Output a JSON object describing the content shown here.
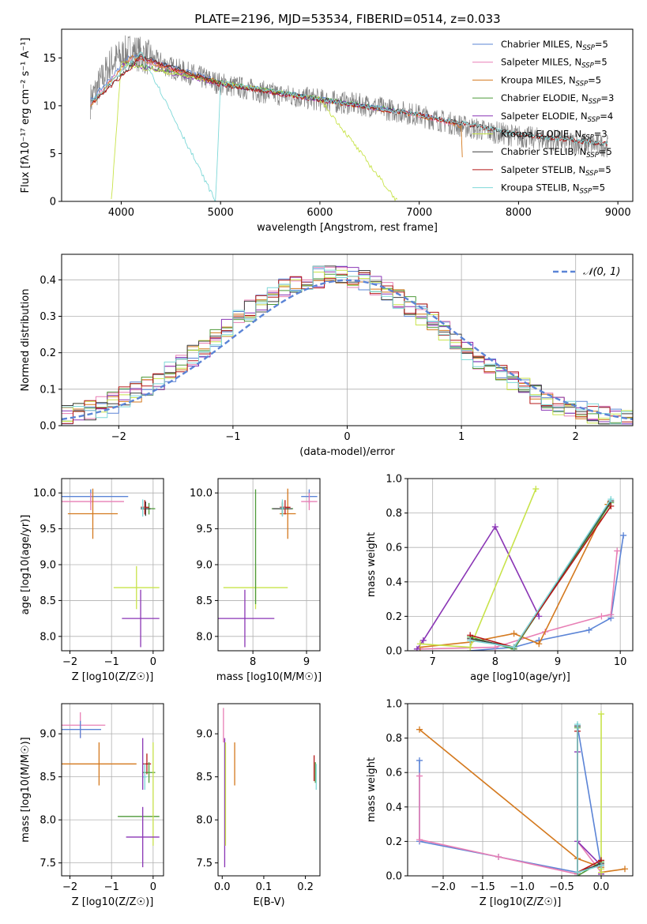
{
  "figure": {
    "title": "PLATE=2196, MJD=53534, FIBERID=0514, z=0.033"
  },
  "chart_data": [
    {
      "id": "spectrum",
      "type": "line",
      "xlabel": "wavelength [Angstrom, rest frame]",
      "ylabel": "Flux [fλ10⁻¹⁷ erg cm⁻² s⁻¹ A⁻¹]",
      "xlim": [
        3400,
        9150
      ],
      "ylim": [
        0,
        18
      ],
      "xticks": [
        4000,
        5000,
        6000,
        7000,
        8000,
        9000
      ],
      "yticks": [
        0,
        5,
        10,
        15
      ],
      "grid": false,
      "legend_position": "top-right",
      "data_series": {
        "name": "data",
        "color": "#808080",
        "x": [
          3690,
          3900,
          4100,
          4500,
          5000,
          5500,
          6000,
          6500,
          7000,
          7500,
          8000,
          8500,
          8900
        ],
        "y": [
          10.5,
          14.5,
          15.8,
          14.0,
          12.3,
          11.3,
          10.6,
          10.0,
          9.0,
          7.7,
          6.8,
          6.2,
          5.8
        ]
      },
      "series": [
        {
          "name": "Chabrier MILES, N_SSP=5",
          "color": "#5b84d6",
          "x": [
            3690,
            4100,
            5000,
            6000,
            7000,
            7400
          ],
          "y": [
            10.5,
            15.3,
            12.5,
            10.7,
            9.1,
            8.0
          ]
        },
        {
          "name": "Salpeter MILES, N_SSP=5",
          "color": "#e87fb5",
          "x": [
            3690,
            4100,
            5000,
            6000,
            7000,
            7400
          ],
          "y": [
            10.2,
            15.0,
            12.3,
            10.6,
            9.0,
            7.9
          ]
        },
        {
          "name": "Kroupa MILES, N_SSP=5",
          "color": "#d4791e",
          "x": [
            3690,
            4100,
            5000,
            6000,
            7000,
            7430,
            7440
          ],
          "y": [
            10.0,
            15.1,
            12.4,
            10.6,
            9.0,
            7.9,
            0
          ]
        },
        {
          "name": "Chabrier ELODIE, N_SSP=3",
          "color": "#4e9a3a",
          "x": [
            4000,
            5000,
            6000,
            6750
          ],
          "y": [
            14.6,
            12.4,
            10.7,
            9.6
          ]
        },
        {
          "name": "Salpeter ELODIE, N_SSP=4",
          "color": "#8a35b5",
          "x": [
            4000,
            5000,
            6000,
            6750
          ],
          "y": [
            14.5,
            12.3,
            10.6,
            9.5
          ]
        },
        {
          "name": "Kroupa ELODIE, N_SSP=3",
          "color": "#c8e34a",
          "x": [
            3900,
            4000,
            5000,
            6000,
            6780
          ],
          "y": [
            0,
            14.4,
            12.4,
            10.7,
            0
          ]
        },
        {
          "name": "Chabrier STELIB, N_SSP=5",
          "color": "#3f3f3f",
          "x": [
            3700,
            4200,
            5000,
            6000,
            7000,
            8000,
            8900
          ],
          "y": [
            10.3,
            15.2,
            12.3,
            10.7,
            9.1,
            7.0,
            6.0
          ]
        },
        {
          "name": "Salpeter STELIB, N_SSP=5",
          "color": "#b51818",
          "x": [
            3700,
            4200,
            5000,
            6000,
            7000,
            8000,
            8900
          ],
          "y": [
            10.2,
            15.0,
            12.2,
            10.6,
            9.0,
            7.0,
            6.0
          ]
        },
        {
          "name": "Kroupa STELIB, N_SSP=5",
          "color": "#7fd8d8",
          "x": [
            3700,
            4200,
            4950,
            5000,
            6000,
            7000,
            8000,
            8900
          ],
          "y": [
            10.4,
            15.6,
            0,
            12.4,
            10.7,
            9.1,
            7.0,
            6.0
          ]
        }
      ]
    },
    {
      "id": "residuals",
      "type": "histogram",
      "xlabel": "(data-model)/error",
      "ylabel": "Normed distribution",
      "xlim": [
        -2.5,
        2.5
      ],
      "ylim": [
        0,
        0.47
      ],
      "xticks": [
        -2,
        -1,
        0,
        1,
        2
      ],
      "yticks": [
        0.0,
        0.1,
        0.2,
        0.3,
        0.4
      ],
      "grid": true,
      "legend_position": "top-right",
      "gaussian": {
        "name": "𝒩(0, 1)",
        "color": "#5b84d6",
        "mu": 0,
        "sigma": 1
      },
      "bin_width": 0.1
    },
    {
      "id": "age_vs_Z",
      "type": "scatter",
      "xlabel": "Z [log10(Z/Z☉)]",
      "ylabel": "age  [log10(age/yr)]",
      "xlim": [
        -2.2,
        0.25
      ],
      "ylim": [
        7.8,
        10.2
      ],
      "xticks": [
        -2,
        -1,
        0
      ],
      "yticks": [
        8.0,
        8.5,
        9.0,
        9.5,
        10.0
      ],
      "grid": true,
      "points": [
        {
          "color": "#5b84d6",
          "x": -1.5,
          "y": 9.95,
          "xerr": 0.9,
          "yerr": 0.1
        },
        {
          "color": "#e87fb5",
          "x": -1.5,
          "y": 9.88,
          "xerr": 0.8,
          "yerr": 0.12
        },
        {
          "color": "#d4791e",
          "x": -1.45,
          "y": 9.71,
          "xerr": 0.6,
          "yerr": 0.35
        },
        {
          "color": "#4e9a3a",
          "x": -0.1,
          "y": 9.78,
          "xerr": 0.15,
          "yerr": 0.08
        },
        {
          "color": "#3f3f3f",
          "x": -0.18,
          "y": 9.78,
          "xerr": 0.12,
          "yerr": 0.1
        },
        {
          "color": "#b51818",
          "x": -0.2,
          "y": 9.8,
          "xerr": 0.1,
          "yerr": 0.1
        },
        {
          "color": "#7fd8d8",
          "x": -0.25,
          "y": 9.79,
          "xerr": 0.05,
          "yerr": 0.12
        },
        {
          "color": "#c8e34a",
          "x": -0.4,
          "y": 8.68,
          "xerr": 0.55,
          "yerr": 0.3
        },
        {
          "color": "#8a35b5",
          "x": -0.3,
          "y": 8.25,
          "xerr": 0.45,
          "yerr": 0.4
        }
      ]
    },
    {
      "id": "age_vs_mass",
      "type": "scatter",
      "xlabel": "mass [log10(M/M☉)]",
      "ylabel": "",
      "xlim": [
        7.35,
        9.25
      ],
      "ylim": [
        7.8,
        10.2
      ],
      "xticks": [
        8,
        9
      ],
      "yticks": [
        8.0,
        8.5,
        9.0,
        9.5,
        10.0
      ],
      "grid": true,
      "points": [
        {
          "color": "#5b84d6",
          "x": 9.05,
          "y": 9.95,
          "xerr": 0.15,
          "yerr": 0.1
        },
        {
          "color": "#e87fb5",
          "x": 9.05,
          "y": 9.88,
          "xerr": 0.15,
          "yerr": 0.12
        },
        {
          "color": "#d4791e",
          "x": 8.65,
          "y": 9.71,
          "xerr": 0.15,
          "yerr": 0.35
        },
        {
          "color": "#4e9a3a",
          "x": 8.55,
          "y": 9.78,
          "xerr": 0.2,
          "yerr": 0.08
        },
        {
          "color": "#3f3f3f",
          "x": 8.55,
          "y": 9.78,
          "xerr": 0.18,
          "yerr": 0.1
        },
        {
          "color": "#b51818",
          "x": 8.6,
          "y": 9.8,
          "xerr": 0.1,
          "yerr": 0.1
        },
        {
          "color": "#7fd8d8",
          "x": 8.55,
          "y": 9.79,
          "xerr": 0.05,
          "yerr": 0.12
        },
        {
          "color": "#c8e34a",
          "x": 8.05,
          "y": 8.68,
          "xerr": 0.6,
          "yerr": 0.3
        },
        {
          "color": "#4e9a3a",
          "x": 8.05,
          "y": 9.25,
          "xerr": 0.0,
          "yerr": 0.8
        },
        {
          "color": "#8a35b5",
          "x": 7.85,
          "y": 8.25,
          "xerr": 0.55,
          "yerr": 0.4
        }
      ]
    },
    {
      "id": "massweight_vs_age",
      "type": "line",
      "xlabel": "age  [log10(age/yr)]",
      "ylabel": "mass weight",
      "xlim": [
        6.6,
        10.2
      ],
      "ylim": [
        0,
        1
      ],
      "xticks": [
        7,
        8,
        9,
        10
      ],
      "yticks": [
        0.0,
        0.2,
        0.4,
        0.6,
        0.8,
        1.0
      ],
      "grid": true,
      "series": [
        {
          "color": "#5b84d6",
          "x": [
            7.6,
            8.3,
            8.7,
            9.5,
            9.85,
            10.05
          ],
          "y": [
            0.0,
            0.02,
            0.06,
            0.12,
            0.19,
            0.67
          ]
        },
        {
          "color": "#e87fb5",
          "x": [
            6.8,
            8.0,
            8.8,
            9.7,
            9.85,
            9.95
          ],
          "y": [
            0.01,
            0.02,
            0.11,
            0.2,
            0.21,
            0.58
          ]
        },
        {
          "color": "#d4791e",
          "x": [
            6.8,
            7.6,
            8.3,
            8.7,
            9.8
          ],
          "y": [
            0.02,
            0.05,
            0.1,
            0.04,
            0.85
          ]
        },
        {
          "color": "#4e9a3a",
          "x": [
            7.6,
            8.3,
            9.85
          ],
          "y": [
            0.08,
            0.01,
            0.86
          ]
        },
        {
          "color": "#8a35b5",
          "x": [
            6.75,
            6.85,
            8.0,
            8.7
          ],
          "y": [
            0.01,
            0.06,
            0.72,
            0.2
          ]
        },
        {
          "color": "#c8e34a",
          "x": [
            6.8,
            7.6,
            8.65
          ],
          "y": [
            0.04,
            0.02,
            0.94
          ]
        },
        {
          "color": "#3f3f3f",
          "x": [
            7.6,
            8.3,
            9.85
          ],
          "y": [
            0.07,
            0.02,
            0.87
          ]
        },
        {
          "color": "#b51818",
          "x": [
            7.6,
            8.3,
            9.85
          ],
          "y": [
            0.09,
            0.02,
            0.84
          ]
        },
        {
          "color": "#7fd8d8",
          "x": [
            7.6,
            8.3,
            9.85
          ],
          "y": [
            0.06,
            0.02,
            0.88
          ]
        }
      ]
    },
    {
      "id": "mass_vs_Z",
      "type": "scatter",
      "xlabel": "Z [log10(Z/Z☉)]",
      "ylabel": "mass [log10(M/M☉)]",
      "xlim": [
        -2.2,
        0.25
      ],
      "ylim": [
        7.35,
        9.35
      ],
      "xticks": [
        -2,
        -1,
        0
      ],
      "yticks": [
        7.5,
        8.0,
        8.5,
        9.0
      ],
      "grid": true,
      "points": [
        {
          "color": "#e87fb5",
          "x": -1.75,
          "y": 9.1,
          "xerr": 0.6,
          "yerr": 0.15
        },
        {
          "color": "#5b84d6",
          "x": -1.75,
          "y": 9.05,
          "xerr": 0.5,
          "yerr": 0.1
        },
        {
          "color": "#d4791e",
          "x": -1.3,
          "y": 8.65,
          "xerr": 0.9,
          "yerr": 0.25
        },
        {
          "color": "#b51818",
          "x": -0.15,
          "y": 8.65,
          "xerr": 0.1,
          "yerr": 0.12
        },
        {
          "color": "#4e9a3a",
          "x": -0.1,
          "y": 8.55,
          "xerr": 0.15,
          "yerr": 0.12
        },
        {
          "color": "#7fd8d8",
          "x": -0.2,
          "y": 8.5,
          "xerr": 0.05,
          "yerr": 0.15
        },
        {
          "color": "#4e9a3a",
          "x": -0.35,
          "y": 8.04,
          "xerr": 0.5,
          "yerr": 0.0
        },
        {
          "color": "#c8e34a",
          "x": 0.0,
          "y": 8.3,
          "xerr": 0.0,
          "yerr": 0.6
        },
        {
          "color": "#8a35b5",
          "x": -0.25,
          "y": 7.8,
          "xerr": 0.4,
          "yerr": 0.35
        },
        {
          "color": "#8a35b5",
          "x": -0.25,
          "y": 8.65,
          "xerr": 0.0,
          "yerr": 0.3
        }
      ]
    },
    {
      "id": "mass_vs_ebv",
      "type": "scatter",
      "xlabel": "E(B-V)",
      "ylabel": "",
      "xlim": [
        -0.01,
        0.235
      ],
      "ylim": [
        7.35,
        9.35
      ],
      "xticks": [
        0.0,
        0.1,
        0.2
      ],
      "yticks": [
        7.5,
        8.0,
        8.5,
        9.0
      ],
      "grid": false,
      "points": [
        {
          "color": "#e87fb5",
          "x": 0.003,
          "y": 9.1,
          "xerr": 0.0,
          "yerr": 0.2
        },
        {
          "color": "#8a35b5",
          "x": 0.006,
          "y": 8.2,
          "xerr": 0.0,
          "yerr": 0.75
        },
        {
          "color": "#c8e34a",
          "x": 0.008,
          "y": 8.3,
          "xerr": 0.0,
          "yerr": 0.6
        },
        {
          "color": "#d4791e",
          "x": 0.03,
          "y": 8.65,
          "xerr": 0.0,
          "yerr": 0.25
        },
        {
          "color": "#b51818",
          "x": 0.221,
          "y": 8.6,
          "xerr": 0.0,
          "yerr": 0.15
        },
        {
          "color": "#4e9a3a",
          "x": 0.224,
          "y": 8.55,
          "xerr": 0.0,
          "yerr": 0.12
        },
        {
          "color": "#7fd8d8",
          "x": 0.226,
          "y": 8.5,
          "xerr": 0.0,
          "yerr": 0.15
        }
      ]
    },
    {
      "id": "massweight_vs_Z",
      "type": "line",
      "xlabel": "Z [log10(Z/Z☉)]",
      "ylabel": "mass weight",
      "xlim": [
        -2.45,
        0.4
      ],
      "ylim": [
        0,
        1
      ],
      "xticks": [
        -2.0,
        -1.5,
        -1.0,
        -0.5,
        0.0
      ],
      "yticks": [
        0.0,
        0.2,
        0.4,
        0.6,
        0.8,
        1.0
      ],
      "grid": true,
      "series": [
        {
          "color": "#5b84d6",
          "x": [
            -2.3,
            -2.3,
            -1.3,
            -0.3,
            -0.3,
            0.0
          ],
          "y": [
            0.67,
            0.2,
            0.11,
            0.02,
            0.87,
            0.05
          ]
        },
        {
          "color": "#e87fb5",
          "x": [
            -2.3,
            -2.3,
            -1.3,
            -0.3,
            -0.3,
            0.0
          ],
          "y": [
            0.58,
            0.21,
            0.11,
            0.01,
            0.2,
            0.02
          ]
        },
        {
          "color": "#d4791e",
          "x": [
            -2.3,
            -0.3,
            0.0,
            0.0,
            0.3
          ],
          "y": [
            0.85,
            0.1,
            0.05,
            0.02,
            0.04
          ]
        },
        {
          "color": "#4e9a3a",
          "x": [
            -0.3,
            -0.3,
            0.0
          ],
          "y": [
            0.86,
            0.0,
            0.08
          ]
        },
        {
          "color": "#8a35b5",
          "x": [
            -0.3,
            -0.3,
            0.0,
            0.0
          ],
          "y": [
            0.72,
            0.2,
            0.06,
            0.01
          ]
        },
        {
          "color": "#c8e34a",
          "x": [
            0.0,
            0.0,
            0.0
          ],
          "y": [
            0.94,
            0.04,
            0.02
          ]
        },
        {
          "color": "#3f3f3f",
          "x": [
            -0.3,
            -0.3,
            0.0
          ],
          "y": [
            0.87,
            0.02,
            0.07
          ]
        },
        {
          "color": "#b51818",
          "x": [
            -0.3,
            -0.3,
            0.0
          ],
          "y": [
            0.84,
            0.02,
            0.09
          ]
        },
        {
          "color": "#7fd8d8",
          "x": [
            -0.3,
            -0.3,
            0.0
          ],
          "y": [
            0.88,
            0.02,
            0.06
          ]
        }
      ]
    }
  ]
}
